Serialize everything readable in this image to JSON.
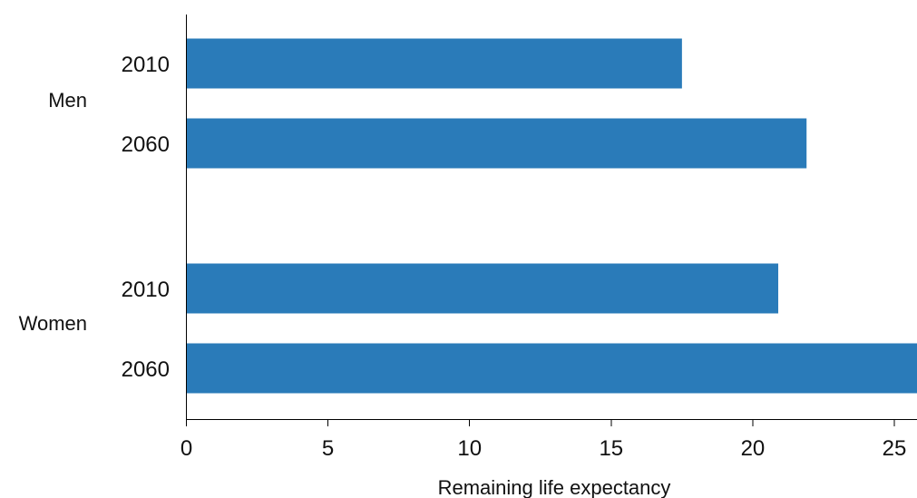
{
  "chart_data": {
    "type": "bar",
    "orientation": "horizontal",
    "xlabel": "Remaining life expectancy",
    "ylabel": "",
    "xlim": [
      0,
      25.8
    ],
    "xticks": [
      0,
      5,
      10,
      15,
      20,
      25
    ],
    "bar_color": "#2a7bb9",
    "grid": false,
    "groups": [
      {
        "name": "Men",
        "bars": [
          {
            "label": "2010",
            "value": 17.5
          },
          {
            "label": "2060",
            "value": 21.9
          }
        ]
      },
      {
        "name": "Women",
        "bars": [
          {
            "label": "2010",
            "value": 20.9
          },
          {
            "label": "2060",
            "value": 25.8
          }
        ]
      }
    ]
  }
}
